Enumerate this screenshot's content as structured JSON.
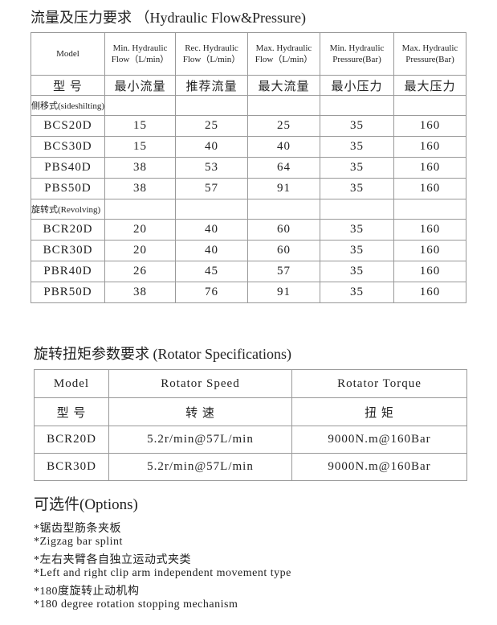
{
  "flow_section": {
    "title": "流量及压力要求 （Hydraulic Flow&Pressure)",
    "table": {
      "header": [
        [
          "Model"
        ],
        [
          "Min. Hydraulic",
          "Flow（L/min）"
        ],
        [
          "Rec. Hydraulic",
          "Flow（L/min）"
        ],
        [
          "Max. Hydraulic",
          "Flow（L/min）"
        ],
        [
          "Min. Hydraulic",
          "Pressure(Bar)"
        ],
        [
          "Max. Hydraulic",
          "Pressure(Bar)"
        ]
      ],
      "header_cn": [
        "型 号",
        "最小流量",
        "推荐流量",
        "最大流量",
        "最小压力",
        "最大压力"
      ],
      "groups": [
        {
          "label": "侧移式(sideshilting)",
          "rows": [
            [
              "BCS20D",
              15,
              25,
              25,
              35,
              160
            ],
            [
              "BCS30D",
              15,
              40,
              40,
              35,
              160
            ],
            [
              "PBS40D",
              38,
              53,
              64,
              35,
              160
            ],
            [
              "PBS50D",
              38,
              57,
              91,
              35,
              160
            ]
          ]
        },
        {
          "label": "旋转式(Revolving)",
          "rows": [
            [
              "BCR20D",
              20,
              40,
              60,
              35,
              160
            ],
            [
              "BCR30D",
              20,
              40,
              60,
              35,
              160
            ],
            [
              "PBR40D",
              26,
              45,
              57,
              35,
              160
            ],
            [
              "PBR50D",
              38,
              76,
              91,
              35,
              160
            ]
          ]
        }
      ]
    }
  },
  "rotator_section": {
    "title": "旋转扭矩参数要求 (Rotator Specifications)",
    "table": {
      "header": [
        "Model",
        "Rotator Speed",
        "Rotator Torque"
      ],
      "header_cn": [
        "型 号",
        "转 速",
        "扭 矩"
      ],
      "rows": [
        [
          "BCR20D",
          "5.2r/min@57L/min",
          "9000N.m@160Bar"
        ],
        [
          "BCR30D",
          "5.2r/min@57L/min",
          "9000N.m@160Bar"
        ]
      ]
    }
  },
  "options": {
    "title": "可选件(Options)",
    "items": [
      "*锯齿型筋条夹板",
      "*Zigzag bar splint",
      "*左右夹臂各自独立运动式夹类",
      "*Left and right clip arm independent movement type",
      "*180度旋转止动机构",
      "*180 degree rotation stopping mechanism"
    ]
  }
}
